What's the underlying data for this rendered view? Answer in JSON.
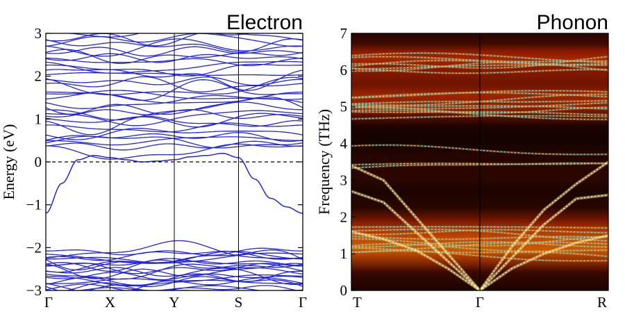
{
  "chart_data": [
    {
      "type": "line",
      "panel_title": "Electron",
      "ylabel": "Energy (eV)",
      "ylim": [
        -3,
        3
      ],
      "yticks": [
        "3",
        "2",
        "1",
        "0",
        "−1",
        "−2",
        "−3"
      ],
      "ytick_values": [
        3,
        2,
        1,
        0,
        -1,
        -2,
        -3
      ],
      "kpath": [
        "Γ",
        "X",
        "Y",
        "S",
        "Γ"
      ],
      "fermi_level": 0,
      "line_color": "#2323e6",
      "highlight_series": [
        {
          "name": "top valence band",
          "x": [
            0,
            0.25,
            0.5,
            0.75,
            1,
            1.25,
            1.5,
            1.75,
            2,
            2.25,
            2.5,
            2.75,
            3,
            3.25,
            3.5,
            3.75,
            4
          ],
          "values": [
            -1.2,
            -0.5,
            0.05,
            0.15,
            0.1,
            0.05,
            0.0,
            0.02,
            0.05,
            0.12,
            0.15,
            0.2,
            0.1,
            -0.4,
            -0.85,
            -1.05,
            -1.2
          ]
        }
      ]
    },
    {
      "type": "line",
      "panel_title": "Phonon",
      "ylabel": "Frequency (THz)",
      "ylim": [
        0,
        7
      ],
      "yticks": [
        "7",
        "6",
        "5",
        "4",
        "3",
        "2",
        "1",
        "0"
      ],
      "ytick_values": [
        7,
        6,
        5,
        4,
        3,
        2,
        1,
        0
      ],
      "kpath": [
        "T",
        "Γ",
        "R"
      ],
      "line_color": "#6fe0e0",
      "background": "phonon spectral function heatmap",
      "acoustic_branches": [
        {
          "x": [
            0,
            0.25,
            0.5,
            0.75,
            1,
            1.25,
            1.5,
            1.75,
            2
          ],
          "values": [
            3.4,
            3.0,
            2.0,
            1.0,
            0.0,
            1.2,
            2.2,
            2.9,
            3.5
          ]
        },
        {
          "x": [
            0,
            0.25,
            0.5,
            0.75,
            1,
            1.25,
            1.5,
            1.75,
            2
          ],
          "values": [
            2.7,
            2.4,
            1.6,
            0.8,
            0.0,
            0.9,
            1.8,
            2.5,
            2.6
          ]
        },
        {
          "x": [
            0,
            0.25,
            0.5,
            0.75,
            1,
            1.25,
            1.5,
            1.75,
            2
          ],
          "values": [
            1.6,
            1.4,
            1.1,
            0.6,
            0.0,
            0.6,
            1.0,
            1.3,
            1.5
          ]
        }
      ]
    }
  ]
}
